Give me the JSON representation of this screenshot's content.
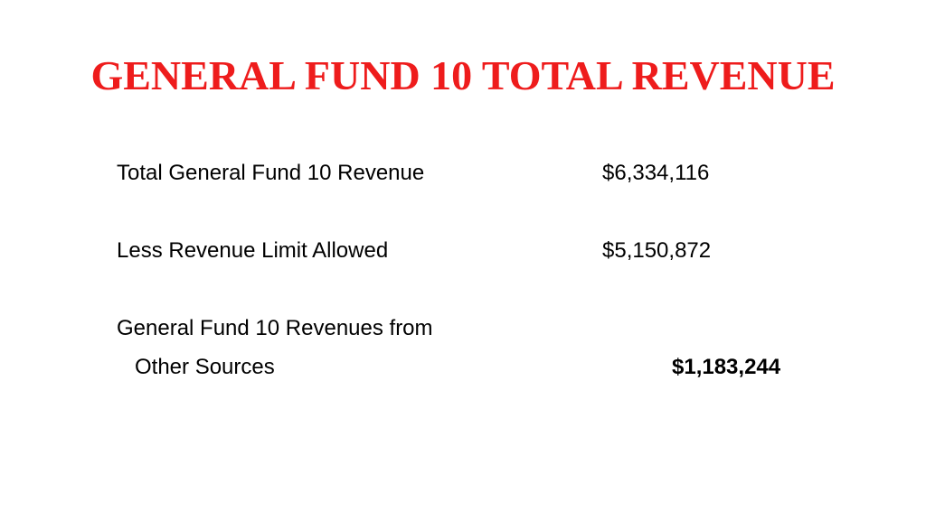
{
  "slide": {
    "title": "GENERAL FUND 10 TOTAL REVENUE",
    "rows": [
      {
        "label": "Total General Fund 10 Revenue",
        "value": "$6,334,116"
      },
      {
        "label": "Less Revenue Limit Allowed",
        "value": "$5,150,872"
      },
      {
        "label_line1": "General Fund 10 Revenues from",
        "label_line2": "Other Sources",
        "value": "$1,183,244"
      }
    ],
    "colors": {
      "title": "#ee1c1c",
      "text": "#000000",
      "background": "#ffffff"
    }
  }
}
